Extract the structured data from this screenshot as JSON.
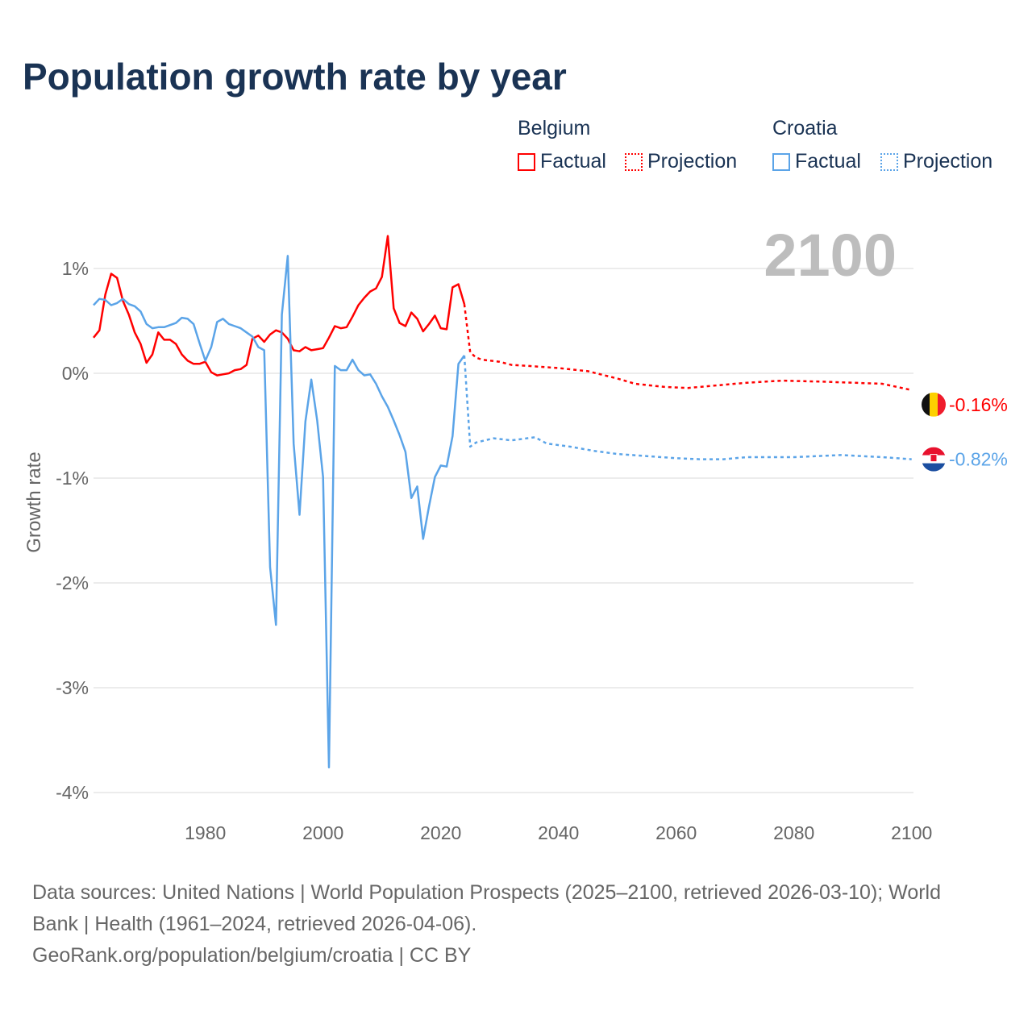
{
  "title": "Population growth rate by year",
  "legend": {
    "groups": [
      {
        "name": "Belgium",
        "factual": "Factual",
        "projection": "Projection",
        "color": "#ff0000"
      },
      {
        "name": "Croatia",
        "factual": "Factual",
        "projection": "Projection",
        "color": "#5ba4e8"
      }
    ]
  },
  "year_label": "2100",
  "footer": {
    "line1": "Data sources: United Nations | World Population Prospects (2025–2100, retrieved 2026-03-10); World",
    "line2": "Bank | Health (1961–2024, retrieved 2026-04-06).",
    "line3": "GeoRank.org/population/belgium/croatia | CC BY"
  },
  "chart_data": {
    "type": "line",
    "title": "Population growth rate by year",
    "ylabel": "Growth rate",
    "xlabel": "",
    "xlim": [
      1961,
      2100
    ],
    "ylim": [
      -4.2,
      1.4
    ],
    "x_ticks": [
      1980,
      2000,
      2020,
      2040,
      2060,
      2080,
      2100
    ],
    "y_ticks": [
      {
        "v": 1,
        "label": "1%"
      },
      {
        "v": 0,
        "label": "0%"
      },
      {
        "v": -1,
        "label": "-1%"
      },
      {
        "v": -2,
        "label": "-2%"
      },
      {
        "v": -3,
        "label": "-3%"
      },
      {
        "v": -4,
        "label": "-4%"
      }
    ],
    "grid": true,
    "series": [
      {
        "name": "Belgium Factual",
        "color": "#ff0000",
        "dashed": false,
        "x_start": 1961,
        "values": [
          0.34,
          0.41,
          0.75,
          0.95,
          0.91,
          0.69,
          0.56,
          0.39,
          0.28,
          0.1,
          0.18,
          0.39,
          0.32,
          0.32,
          0.28,
          0.18,
          0.12,
          0.09,
          0.09,
          0.11,
          0.01,
          -0.02,
          -0.01,
          0.0,
          0.03,
          0.04,
          0.08,
          0.33,
          0.36,
          0.3,
          0.37,
          0.41,
          0.39,
          0.33,
          0.22,
          0.21,
          0.25,
          0.22,
          0.23,
          0.24,
          0.34,
          0.45,
          0.43,
          0.44,
          0.54,
          0.65,
          0.72,
          0.78,
          0.81,
          0.92,
          1.31,
          0.62,
          0.48,
          0.45,
          0.58,
          0.52,
          0.4,
          0.47,
          0.55,
          0.43,
          0.42,
          0.82,
          0.85,
          0.66
        ]
      },
      {
        "name": "Belgium Projection",
        "color": "#ff0000",
        "dashed": true,
        "points": [
          [
            2024,
            0.66
          ],
          [
            2025,
            0.2
          ],
          [
            2026,
            0.15
          ],
          [
            2027,
            0.13
          ],
          [
            2030,
            0.11
          ],
          [
            2032,
            0.08
          ],
          [
            2035,
            0.07
          ],
          [
            2040,
            0.05
          ],
          [
            2045,
            0.02
          ],
          [
            2050,
            -0.05
          ],
          [
            2053,
            -0.1
          ],
          [
            2058,
            -0.13
          ],
          [
            2062,
            -0.14
          ],
          [
            2068,
            -0.11
          ],
          [
            2072,
            -0.09
          ],
          [
            2078,
            -0.07
          ],
          [
            2085,
            -0.08
          ],
          [
            2090,
            -0.09
          ],
          [
            2095,
            -0.1
          ],
          [
            2100,
            -0.16
          ]
        ]
      },
      {
        "name": "Croatia Factual",
        "color": "#5ba4e8",
        "dashed": false,
        "x_start": 1961,
        "values": [
          0.65,
          0.71,
          0.7,
          0.65,
          0.67,
          0.71,
          0.66,
          0.64,
          0.59,
          0.47,
          0.43,
          0.44,
          0.44,
          0.46,
          0.48,
          0.53,
          0.52,
          0.47,
          0.29,
          0.12,
          0.25,
          0.49,
          0.52,
          0.47,
          0.45,
          0.43,
          0.39,
          0.35,
          0.25,
          0.22,
          -1.85,
          -2.4,
          0.56,
          1.12,
          -0.67,
          -1.35,
          -0.46,
          -0.06,
          -0.45,
          -0.99,
          -3.76,
          0.07,
          0.03,
          0.03,
          0.13,
          0.03,
          -0.02,
          -0.01,
          -0.1,
          -0.22,
          -0.32,
          -0.45,
          -0.59,
          -0.75,
          -1.19,
          -1.08,
          -1.58,
          -1.27,
          -0.99,
          -0.88,
          -0.89,
          -0.6,
          0.09,
          0.17
        ]
      },
      {
        "name": "Croatia Projection",
        "color": "#5ba4e8",
        "dashed": true,
        "points": [
          [
            2024,
            0.17
          ],
          [
            2025,
            -0.7
          ],
          [
            2026,
            -0.66
          ],
          [
            2029,
            -0.62
          ],
          [
            2032,
            -0.64
          ],
          [
            2036,
            -0.61
          ],
          [
            2038,
            -0.67
          ],
          [
            2042,
            -0.7
          ],
          [
            2046,
            -0.74
          ],
          [
            2050,
            -0.77
          ],
          [
            2055,
            -0.79
          ],
          [
            2060,
            -0.81
          ],
          [
            2064,
            -0.82
          ],
          [
            2068,
            -0.82
          ],
          [
            2072,
            -0.8
          ],
          [
            2080,
            -0.8
          ],
          [
            2088,
            -0.78
          ],
          [
            2095,
            -0.8
          ],
          [
            2100,
            -0.82
          ]
        ]
      }
    ],
    "end_labels": [
      {
        "country": "Belgium",
        "label": "-0.16%",
        "value": -0.16,
        "color": "#ff0000"
      },
      {
        "country": "Croatia",
        "label": "-0.82%",
        "value": -0.82,
        "color": "#5ba4e8"
      }
    ]
  }
}
